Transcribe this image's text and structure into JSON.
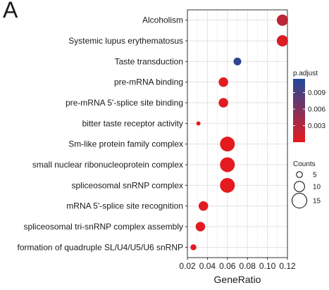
{
  "panel_letter": "A",
  "chart_data": {
    "type": "scatter",
    "title": "",
    "xlabel": "GeneRatio",
    "ylabel": "",
    "xlim": [
      0.02,
      0.12
    ],
    "xticks": [
      "0.02",
      "0.04",
      "0.06",
      "0.08",
      "0.10",
      "0.12"
    ],
    "xtick_values": [
      0.02,
      0.04,
      0.06,
      0.08,
      0.1,
      0.12
    ],
    "grid": true,
    "categories": [
      "Alcoholism",
      "Systemic lupus erythematosus",
      "Taste transduction",
      "pre-mRNA binding",
      "pre-mRNA 5'-splice site binding",
      "bitter taste receptor activity",
      "Sm-like protein family complex",
      "small nuclear ribonucleoprotein complex",
      "spliceosomal snRNP complex",
      "mRNA 5'-splice site recognition",
      "spliceosomal tri-snRNP complex assembly",
      "formation of quadruple SL/U4/U5/U6 snRNP"
    ],
    "points": [
      {
        "category": "Alcoholism",
        "gene_ratio": 0.115,
        "count": 11,
        "p_adjust": 0.0025
      },
      {
        "category": "Systemic lupus erythematosus",
        "gene_ratio": 0.115,
        "count": 11,
        "p_adjust": 0.0008
      },
      {
        "category": "Taste transduction",
        "gene_ratio": 0.07,
        "count": 7,
        "p_adjust": 0.0105
      },
      {
        "category": "pre-mRNA binding",
        "gene_ratio": 0.056,
        "count": 9,
        "p_adjust": 0.0004
      },
      {
        "category": "pre-mRNA 5'-splice site binding",
        "gene_ratio": 0.056,
        "count": 9,
        "p_adjust": 0.0004
      },
      {
        "category": "bitter taste receptor activity",
        "gene_ratio": 0.031,
        "count": 3,
        "p_adjust": 0.0005
      },
      {
        "category": "Sm-like protein family complex",
        "gene_ratio": 0.06,
        "count": 15,
        "p_adjust": 0.0002
      },
      {
        "category": "small nuclear ribonucleoprotein complex",
        "gene_ratio": 0.06,
        "count": 15,
        "p_adjust": 0.0002
      },
      {
        "category": "spliceosomal snRNP complex",
        "gene_ratio": 0.06,
        "count": 15,
        "p_adjust": 0.0002
      },
      {
        "category": "mRNA 5'-splice site recognition",
        "gene_ratio": 0.036,
        "count": 9,
        "p_adjust": 0.0003
      },
      {
        "category": "spliceosomal tri-snRNP complex assembly",
        "gene_ratio": 0.033,
        "count": 9,
        "p_adjust": 0.0004
      },
      {
        "category": "formation of quadruple SL/U4/U5/U6 snRNP",
        "gene_ratio": 0.026,
        "count": 5,
        "p_adjust": 0.0003
      }
    ],
    "color_legend": {
      "title": "p.adjust",
      "ticks": [
        "0.009",
        "0.006",
        "0.003"
      ],
      "tick_values": [
        0.009,
        0.006,
        0.003
      ],
      "range": [
        0.0,
        0.0115
      ],
      "low_color": "#e8191d",
      "high_color": "#1f4a9a"
    },
    "size_legend": {
      "title": "Counts",
      "labels": [
        "5",
        "10",
        "15"
      ],
      "values": [
        5,
        10,
        15
      ]
    }
  }
}
